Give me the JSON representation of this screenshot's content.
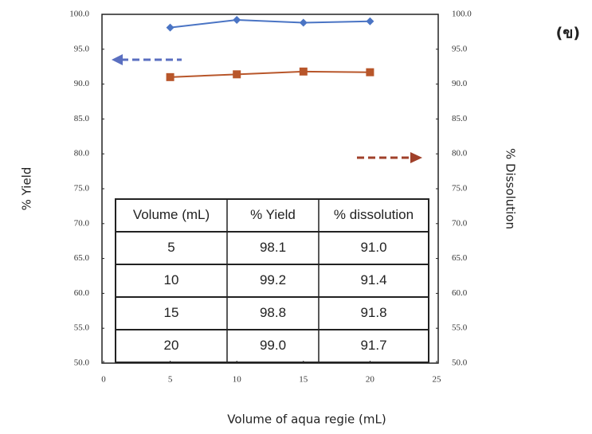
{
  "chart_data": {
    "type": "line",
    "panel_label": "(ข)",
    "xlabel": "Volume of aqua regie (mL)",
    "ylabel": "% Yield",
    "y2label": "% Dissolution",
    "x": [
      5,
      10,
      15,
      20
    ],
    "series": [
      {
        "name": "% Yield",
        "color": "#4a74c4",
        "marker": "diamond",
        "values": [
          98.1,
          99.2,
          98.8,
          99.0
        ]
      },
      {
        "name": "% dissolution",
        "color": "#b8562a",
        "marker": "square",
        "axis": "y2",
        "values": [
          91.0,
          91.4,
          91.8,
          91.7
        ]
      }
    ],
    "xlim": [
      0,
      25
    ],
    "xticks": [
      0,
      5,
      10,
      15,
      20,
      25
    ],
    "ylim": [
      50,
      100
    ],
    "yticks": [
      {
        "value": 50,
        "label": "50.0"
      },
      {
        "value": 55,
        "label": "55.0"
      },
      {
        "value": 60,
        "label": "60.0"
      },
      {
        "value": 65,
        "label": "65.0"
      },
      {
        "value": 70,
        "label": "70.0"
      },
      {
        "value": 75,
        "label": "75.0"
      },
      {
        "value": 80,
        "label": "80.0"
      },
      {
        "value": 85,
        "label": "85.0"
      },
      {
        "value": 90,
        "label": "90.0"
      },
      {
        "value": 95,
        "label": "95.0"
      },
      {
        "value": 100,
        "label": "100.0"
      }
    ],
    "y2lim": [
      50,
      100
    ],
    "y2ticks": [
      {
        "value": 50,
        "label": "50.0"
      },
      {
        "value": 55,
        "label": "55.0"
      },
      {
        "value": 60,
        "label": "60.0"
      },
      {
        "value": 65,
        "label": "65.0"
      },
      {
        "value": 70,
        "label": "70.0"
      },
      {
        "value": 75,
        "label": "75.0"
      },
      {
        "value": 80,
        "label": "80.0"
      },
      {
        "value": 85,
        "label": "85.0"
      },
      {
        "value": 90,
        "label": "90.0"
      },
      {
        "value": 95,
        "label": "95.0"
      },
      {
        "value": 100,
        "label": "100.0"
      }
    ],
    "table": {
      "columns": [
        "Volume (mL)",
        "% Yield",
        "% dissolution"
      ],
      "rows": [
        [
          "5",
          "98.1",
          "91.0"
        ],
        [
          "10",
          "99.2",
          "91.4"
        ],
        [
          "15",
          "98.8",
          "91.8"
        ],
        [
          "20",
          "99.0",
          "91.7"
        ]
      ]
    }
  }
}
